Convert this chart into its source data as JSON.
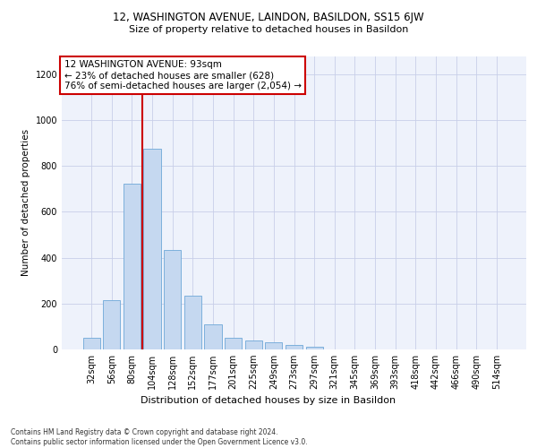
{
  "title1": "12, WASHINGTON AVENUE, LAINDON, BASILDON, SS15 6JW",
  "title2": "Size of property relative to detached houses in Basildon",
  "xlabel": "Distribution of detached houses by size in Basildon",
  "ylabel": "Number of detached properties",
  "categories": [
    "32sqm",
    "56sqm",
    "80sqm",
    "104sqm",
    "128sqm",
    "152sqm",
    "177sqm",
    "201sqm",
    "225sqm",
    "249sqm",
    "273sqm",
    "297sqm",
    "321sqm",
    "345sqm",
    "369sqm",
    "393sqm",
    "418sqm",
    "442sqm",
    "466sqm",
    "490sqm",
    "514sqm"
  ],
  "values": [
    50,
    215,
    725,
    875,
    435,
    235,
    110,
    50,
    40,
    30,
    20,
    12,
    0,
    0,
    0,
    0,
    0,
    0,
    0,
    0,
    0
  ],
  "bar_color": "#c5d8f0",
  "bar_edge_color": "#6ea8d8",
  "vline_x": 2.5,
  "vline_color": "#cc0000",
  "annotation_text": "12 WASHINGTON AVENUE: 93sqm\n← 23% of detached houses are smaller (628)\n76% of semi-detached houses are larger (2,054) →",
  "annotation_box_color": "#ffffff",
  "annotation_box_edge_color": "#cc0000",
  "ylim": [
    0,
    1280
  ],
  "yticks": [
    0,
    200,
    400,
    600,
    800,
    1000,
    1200
  ],
  "footnote": "Contains HM Land Registry data © Crown copyright and database right 2024.\nContains public sector information licensed under the Open Government Licence v3.0.",
  "bg_color": "#ffffff",
  "plot_bg_color": "#eef2fb",
  "grid_color": "#c8cfe8",
  "title1_fontsize": 8.5,
  "title2_fontsize": 8.0,
  "xlabel_fontsize": 8.0,
  "ylabel_fontsize": 7.5,
  "tick_fontsize": 7.0,
  "annot_fontsize": 7.5,
  "footnote_fontsize": 5.5
}
